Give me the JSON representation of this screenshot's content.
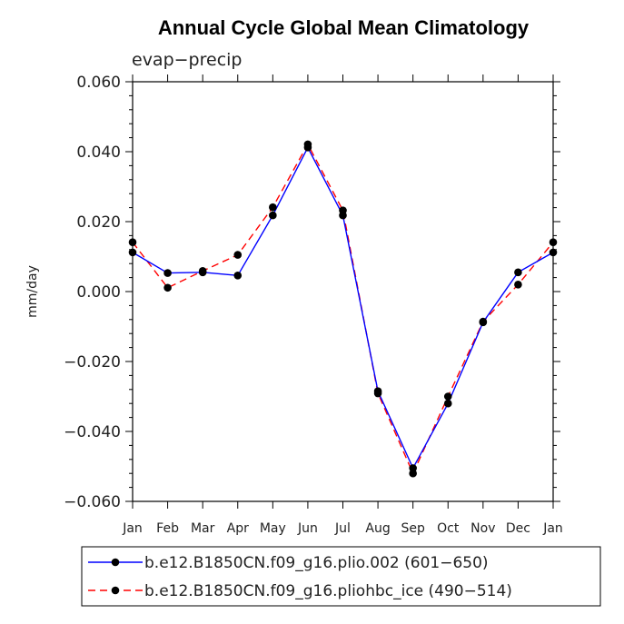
{
  "chart_data": {
    "type": "line",
    "title": "Annual Cycle Global Mean Climatology",
    "subtitle": "evap−precip",
    "xlabel": "",
    "ylabel": "mm/day",
    "categories": [
      "Jan",
      "Feb",
      "Mar",
      "Apr",
      "May",
      "Jun",
      "Jul",
      "Aug",
      "Sep",
      "Oct",
      "Nov",
      "Dec",
      "Jan"
    ],
    "ylim": [
      -0.06,
      0.06
    ],
    "yticks": [
      0.06,
      0.04,
      0.02,
      0.0,
      -0.02,
      -0.04,
      -0.06
    ],
    "ytick_labels": [
      "0.060",
      "0.040",
      "0.020",
      "0.000",
      "−0.020",
      "−0.040",
      "−0.060"
    ],
    "grid": false,
    "legend_position": "bottom",
    "series": [
      {
        "name": "b.e12.B1850CN.f09_g16.plio.002 (601−650)",
        "color": "#0000ff",
        "dash": "solid",
        "values": [
          0.0112,
          0.0053,
          0.0055,
          0.0046,
          0.0218,
          0.0412,
          0.0218,
          -0.0285,
          -0.0505,
          -0.032,
          -0.0088,
          0.0055,
          0.0112
        ]
      },
      {
        "name": "b.e12.B1850CN.f09_g16.pliohbc_ice (490−514)",
        "color": "#ff0000",
        "dash": "dashed",
        "values": [
          0.0141,
          0.0011,
          0.0059,
          0.0105,
          0.0241,
          0.0421,
          0.0232,
          -0.0291,
          -0.052,
          -0.03,
          -0.0086,
          0.002,
          0.0141
        ]
      }
    ]
  }
}
